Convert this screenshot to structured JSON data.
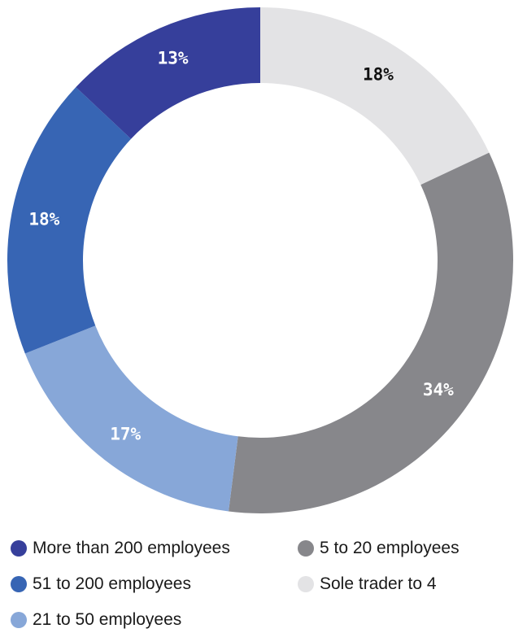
{
  "chart_data": {
    "type": "pie",
    "donut": true,
    "legend_position": "bottom",
    "series": [
      {
        "name": "Sole trader to 4",
        "value": 18,
        "label": "18%",
        "color": "#e3e3e5",
        "label_color": "#111111"
      },
      {
        "name": "5 to 20 employees",
        "value": 34,
        "label": "34%",
        "color": "#87878b",
        "label_color": "#ffffff"
      },
      {
        "name": "21 to 50 employees",
        "value": 17,
        "label": "17%",
        "color": "#87a7d8",
        "label_color": "#ffffff"
      },
      {
        "name": "51 to 200 employees",
        "value": 18,
        "label": "18%",
        "color": "#3765b4",
        "label_color": "#ffffff"
      },
      {
        "name": "More than 200 employees",
        "value": 13,
        "label": "13%",
        "color": "#363f9b",
        "label_color": "#ffffff"
      }
    ]
  },
  "legend": {
    "items": [
      {
        "label": "More than 200 employees",
        "color": "#363f9b"
      },
      {
        "label": "5 to 20 employees",
        "color": "#87878b"
      },
      {
        "label": "51 to 200 employees",
        "color": "#3765b4"
      },
      {
        "label": "Sole trader to 4",
        "color": "#e3e3e5"
      },
      {
        "label": "21 to 50 employees",
        "color": "#87a7d8"
      }
    ]
  }
}
